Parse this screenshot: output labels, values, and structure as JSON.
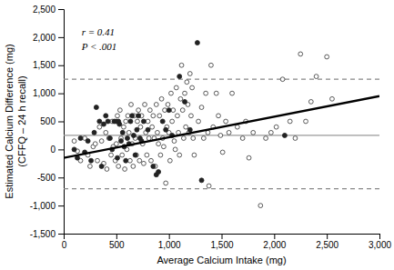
{
  "chart_data": {
    "type": "scatter",
    "xlabel": "Average Calcium Intake (mg)",
    "ylabel": "Estimated Calcium Difference (mg)\n(CFFQ – 24 h recall)",
    "xlim": [
      0,
      3000
    ],
    "ylim": [
      -1500,
      2500
    ],
    "xticks": [
      0,
      500,
      {
        "value": 1000,
        "label": "1,000"
      },
      {
        "value": 1500,
        "label": "1,500"
      },
      {
        "value": 2000,
        "label": "2,000"
      },
      {
        "value": 2500,
        "label": "2,500"
      },
      {
        "value": 3000,
        "label": "3,000"
      }
    ],
    "yticks": [
      {
        "value": -1500,
        "label": "-1,500"
      },
      {
        "value": -1000,
        "label": "-1,000"
      },
      -500,
      0,
      500,
      {
        "value": 1000,
        "label": "1,000"
      },
      {
        "value": 1500,
        "label": "1,500"
      },
      {
        "value": 2000,
        "label": "2,000"
      },
      {
        "value": 2500,
        "label": "2,500"
      }
    ],
    "grid": false,
    "series": [
      {
        "type": "scatter",
        "marker": "open-circle",
        "color": "#333333",
        "x": [
          100,
          130,
          160,
          200,
          230,
          250,
          280,
          300,
          320,
          340,
          360,
          380,
          400,
          410,
          430,
          450,
          460,
          470,
          490,
          500,
          510,
          520,
          535,
          545,
          555,
          570,
          580,
          590,
          600,
          610,
          620,
          630,
          640,
          650,
          660,
          670,
          680,
          690,
          700,
          710,
          720,
          730,
          740,
          750,
          760,
          770,
          780,
          790,
          800,
          810,
          820,
          830,
          840,
          850,
          860,
          870,
          880,
          890,
          900,
          910,
          920,
          930,
          940,
          950,
          960,
          970,
          980,
          990,
          1000,
          1010,
          1020,
          1030,
          1040,
          1050,
          1060,
          1070,
          1080,
          1090,
          1100,
          1110,
          1120,
          1130,
          1140,
          1150,
          1160,
          1170,
          1180,
          1190,
          1200,
          1210,
          1220,
          1230,
          1240,
          1280,
          1310,
          1330,
          1350,
          1370,
          1380,
          1400,
          1420,
          1450,
          1470,
          1490,
          1510,
          1540,
          1570,
          1600,
          1650,
          1700,
          1730,
          1760,
          1800,
          1870,
          1920,
          1970,
          2020,
          2080,
          2150,
          2200,
          2250,
          2300,
          2350,
          2400,
          2500,
          2550
        ],
        "values": [
          150,
          -30,
          -200,
          200,
          -100,
          -300,
          50,
          100,
          -200,
          400,
          150,
          -250,
          300,
          -350,
          200,
          -100,
          500,
          50,
          -200,
          100,
          600,
          -300,
          700,
          200,
          -100,
          400,
          -350,
          500,
          0,
          600,
          300,
          -200,
          800,
          100,
          -300,
          600,
          200,
          -100,
          500,
          700,
          -200,
          400,
          600,
          100,
          -250,
          800,
          300,
          -100,
          500,
          200,
          700,
          -200,
          400,
          600,
          200,
          -300,
          800,
          300,
          100,
          600,
          -100,
          900,
          200,
          50,
          700,
          -600,
          400,
          800,
          300,
          -200,
          1000,
          500,
          700,
          150,
          0,
          1100,
          600,
          300,
          -100,
          900,
          1500,
          700,
          200,
          1000,
          400,
          1200,
          800,
          300,
          1350,
          600,
          1100,
          200,
          -100,
          500,
          750,
          200,
          1000,
          300,
          -650,
          1500,
          400,
          1000,
          600,
          250,
          -50,
          500,
          300,
          1000,
          400,
          200,
          500,
          -150,
          300,
          -1000,
          200,
          300,
          400,
          1250,
          500,
          200,
          1700,
          500,
          850,
          1300,
          1650,
          900
        ]
      },
      {
        "type": "scatter",
        "marker": "circle",
        "color": "#222222",
        "x": [
          100,
          130,
          160,
          200,
          230,
          260,
          290,
          310,
          340,
          360,
          380,
          400,
          420,
          440,
          460,
          480,
          500,
          510,
          520,
          530,
          545,
          560,
          575,
          590,
          605,
          620,
          635,
          650,
          665,
          680,
          695,
          710,
          725,
          740,
          760,
          800,
          850,
          880,
          900,
          940,
          970,
          1000,
          1030,
          1100,
          1150,
          1200,
          1270,
          1310,
          2100
        ],
        "values": [
          0,
          -150,
          200,
          -50,
          150,
          -200,
          300,
          750,
          500,
          -300,
          450,
          600,
          500,
          200,
          0,
          500,
          500,
          -150,
          500,
          450,
          150,
          300,
          50,
          -200,
          200,
          100,
          500,
          600,
          250,
          -100,
          350,
          600,
          200,
          150,
          500,
          350,
          -300,
          -450,
          -400,
          500,
          350,
          700,
          250,
          1300,
          850,
          350,
          1900,
          -550,
          250
        ]
      },
      {
        "type": "line",
        "line_style": "solid",
        "color": "#000000",
        "x": [
          0,
          3000
        ],
        "values": [
          -150,
          950
        ]
      }
    ],
    "reference_lines": [
      {
        "value": 1250,
        "color": "#888888",
        "line_style": "dashed"
      },
      {
        "value": -700,
        "color": "#888888",
        "line_style": "dashed"
      },
      {
        "value": 250,
        "color": "#999999",
        "line_style": "solid"
      }
    ],
    "annotations": [
      {
        "text": "r = 0.41\nP < .001",
        "x": 170,
        "y": 2180
      }
    ]
  }
}
